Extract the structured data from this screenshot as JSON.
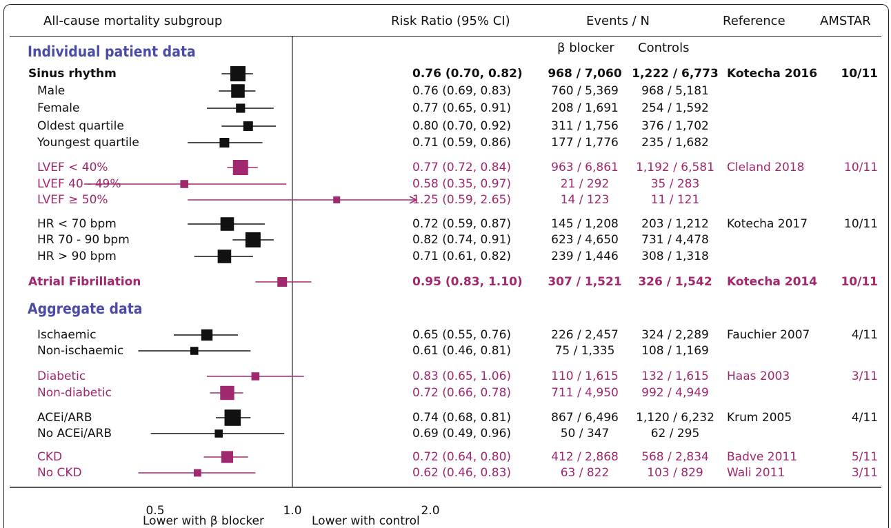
{
  "colors": {
    "black": "#111111",
    "magenta": "#a0286e",
    "section": "#4a4aa8"
  },
  "header": {
    "subgroup": "All-cause mortality subgroup",
    "rr": "Risk Ratio (95% CI)",
    "events": "Events / N",
    "reference": "Reference",
    "amstar": "AMSTAR"
  },
  "subheader": {
    "beta": "β blocker",
    "controls": "Controls"
  },
  "chart_data": {
    "type": "forest",
    "x_scale": "log",
    "reference_line": 1.0,
    "x_ticks": [
      "0.5",
      "1.0",
      "2.0"
    ],
    "x_label_left": "Lower with β blocker",
    "x_label_right": "Lower with control",
    "sections": [
      {
        "title": "Individual patient data"
      },
      {
        "title": "Aggregate data"
      }
    ],
    "rows": [
      {
        "label": "Sinus rhythm",
        "rr": 0.76,
        "lo": 0.7,
        "hi": 0.82,
        "ci_text": "0.76 (0.70, 0.82)",
        "ev_beta": "968 / 7,060",
        "ev_ctrl": "1,222 / 6,773",
        "reference": "Kotecha 2016",
        "amstar": "10/11",
        "color": "black",
        "bold": true,
        "weight": 1.0
      },
      {
        "label": "Male",
        "rr": 0.76,
        "lo": 0.69,
        "hi": 0.83,
        "ci_text": "0.76 (0.69, 0.83)",
        "ev_beta": "760 / 5,369",
        "ev_ctrl": "968 / 5,181",
        "reference": "",
        "amstar": "",
        "color": "black",
        "bold": false,
        "weight": 0.85
      },
      {
        "label": "Female",
        "rr": 0.77,
        "lo": 0.65,
        "hi": 0.91,
        "ci_text": "0.77 (0.65, 0.91)",
        "ev_beta": "208 / 1,691",
        "ev_ctrl": "254 / 1,592",
        "reference": "",
        "amstar": "",
        "color": "black",
        "bold": false,
        "weight": 0.45
      },
      {
        "label": "Oldest quartile",
        "rr": 0.8,
        "lo": 0.7,
        "hi": 0.92,
        "ci_text": "0.80 (0.70, 0.92)",
        "ev_beta": "311 / 1,756",
        "ev_ctrl": "376 / 1,702",
        "reference": "",
        "amstar": "",
        "color": "black",
        "bold": false,
        "weight": 0.5
      },
      {
        "label": "Youngest quartile",
        "rr": 0.71,
        "lo": 0.59,
        "hi": 0.86,
        "ci_text": "0.71 (0.59, 0.86)",
        "ev_beta": "177 / 1,776",
        "ev_ctrl": "235 / 1,682",
        "reference": "",
        "amstar": "",
        "color": "black",
        "bold": false,
        "weight": 0.5
      },
      {
        "label": "LVEF < 40%",
        "rr": 0.77,
        "lo": 0.72,
        "hi": 0.84,
        "ci_text": "0.77 (0.72, 0.84)",
        "ev_beta": "963 / 6,861",
        "ev_ctrl": "1,192 / 6,581",
        "reference": "Cleland 2018",
        "amstar": "10/11",
        "color": "magenta",
        "bold": false,
        "weight": 1.0
      },
      {
        "label": "LVEF 40 - 49%",
        "rr": 0.58,
        "lo": 0.35,
        "hi": 0.97,
        "ci_text": "0.58 (0.35, 0.97)",
        "ev_beta": "21 / 292",
        "ev_ctrl": "35 / 283",
        "reference": "",
        "amstar": "",
        "color": "magenta",
        "bold": false,
        "weight": 0.35
      },
      {
        "label": "LVEF ≥ 50%",
        "rr": 1.25,
        "lo": 0.59,
        "hi": 2.65,
        "ci_text": "1.25 (0.59, 2.65)",
        "ev_beta": "14 / 123",
        "ev_ctrl": "11 / 121",
        "reference": "",
        "amstar": "",
        "color": "magenta",
        "bold": false,
        "weight": 0.25,
        "arrow_right": true
      },
      {
        "label": "HR < 70 bpm",
        "rr": 0.72,
        "lo": 0.59,
        "hi": 0.87,
        "ci_text": "0.72 (0.59, 0.87)",
        "ev_beta": "145 / 1,208",
        "ev_ctrl": "203 / 1,212",
        "reference": "Kotecha 2017",
        "amstar": "10/11",
        "color": "black",
        "bold": false,
        "weight": 0.85
      },
      {
        "label": "HR 70 - 90 bpm",
        "rr": 0.82,
        "lo": 0.74,
        "hi": 0.91,
        "ci_text": "0.82 (0.74, 0.91)",
        "ev_beta": "623 / 4,650",
        "ev_ctrl": "731 / 4,478",
        "reference": "",
        "amstar": "",
        "color": "black",
        "bold": false,
        "weight": 1.0
      },
      {
        "label": "HR > 90 bpm",
        "rr": 0.71,
        "lo": 0.61,
        "hi": 0.82,
        "ci_text": "0.71 (0.61, 0.82)",
        "ev_beta": "239 / 1,446",
        "ev_ctrl": "308 / 1,318",
        "reference": "",
        "amstar": "",
        "color": "black",
        "bold": false,
        "weight": 0.85
      },
      {
        "label": "Atrial Fibrillation",
        "rr": 0.95,
        "lo": 0.83,
        "hi": 1.1,
        "ci_text": "0.95 (0.83, 1.10)",
        "ev_beta": "307 / 1,521",
        "ev_ctrl": "326 / 1,542",
        "reference": "Kotecha 2014",
        "amstar": "10/11",
        "color": "magenta",
        "bold": true,
        "weight": 0.5
      },
      {
        "label": "Ischaemic",
        "rr": 0.65,
        "lo": 0.55,
        "hi": 0.76,
        "ci_text": "0.65 (0.55, 0.76)",
        "ev_beta": "226 / 2,457",
        "ev_ctrl": "324 / 2,289",
        "reference": "Fauchier 2007",
        "amstar": "4/11",
        "color": "black",
        "bold": false,
        "weight": 0.65
      },
      {
        "label": "Non-ischaemic",
        "rr": 0.61,
        "lo": 0.46,
        "hi": 0.81,
        "ci_text": "0.61 (0.46, 0.81)",
        "ev_beta": "75 / 1,335",
        "ev_ctrl": "108 / 1,169",
        "reference": "",
        "amstar": "",
        "color": "black",
        "bold": false,
        "weight": 0.35
      },
      {
        "label": "Diabetic",
        "rr": 0.83,
        "lo": 0.65,
        "hi": 1.06,
        "ci_text": "0.83 (0.65, 1.06)",
        "ev_beta": "110 / 1,615",
        "ev_ctrl": "132 / 1,615",
        "reference": "Haas 2003",
        "amstar": "3/11",
        "color": "magenta",
        "bold": false,
        "weight": 0.35
      },
      {
        "label": "Non-diabetic",
        "rr": 0.72,
        "lo": 0.66,
        "hi": 0.78,
        "ci_text": "0.72 (0.66, 0.78)",
        "ev_beta": "711 / 4,950",
        "ev_ctrl": "992 / 4,949",
        "reference": "",
        "amstar": "",
        "color": "magenta",
        "bold": false,
        "weight": 0.9
      },
      {
        "label": "ACEi/ARB",
        "rr": 0.74,
        "lo": 0.68,
        "hi": 0.81,
        "ci_text": "0.74 (0.68, 0.81)",
        "ev_beta": "867 / 6,496",
        "ev_ctrl": "1,120 / 6,232",
        "reference": "Krum 2005",
        "amstar": "4/11",
        "color": "black",
        "bold": false,
        "weight": 1.1
      },
      {
        "label": "No ACEi/ARB",
        "rr": 0.69,
        "lo": 0.49,
        "hi": 0.96,
        "ci_text": "0.69 (0.49, 0.96)",
        "ev_beta": "50 / 347",
        "ev_ctrl": "62 / 295",
        "reference": "",
        "amstar": "",
        "color": "black",
        "bold": false,
        "weight": 0.35
      },
      {
        "label": "CKD",
        "rr": 0.72,
        "lo": 0.64,
        "hi": 0.8,
        "ci_text": "0.72 (0.64, 0.80)",
        "ev_beta": "412 / 2,868",
        "ev_ctrl": "568 / 2,834",
        "reference": "Badve 2011",
        "amstar": "5/11",
        "color": "magenta",
        "bold": false,
        "weight": 0.7
      },
      {
        "label": "No CKD",
        "rr": 0.62,
        "lo": 0.46,
        "hi": 0.83,
        "ci_text": "0.62 (0.46, 0.83)",
        "ev_beta": "63 / 822",
        "ev_ctrl": "103 / 829",
        "reference": "Wali 2011",
        "amstar": "3/11",
        "color": "magenta",
        "bold": false,
        "weight": 0.3
      }
    ]
  }
}
